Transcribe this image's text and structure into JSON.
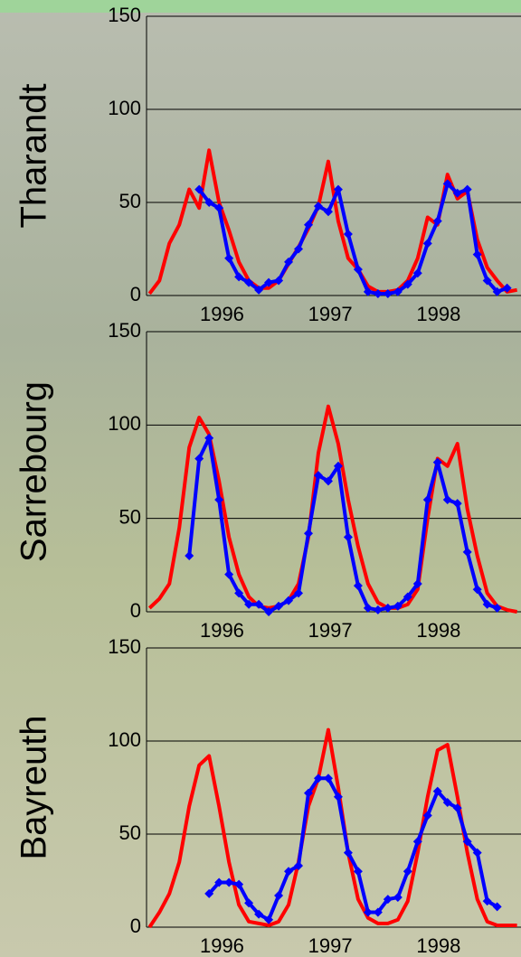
{
  "chart_data": [
    {
      "type": "line",
      "ylabel": "Tharandt",
      "x": [
        0,
        1,
        2,
        3,
        4,
        5,
        6,
        7,
        8,
        9,
        10,
        11,
        12,
        13,
        14,
        15,
        16,
        17,
        18,
        19,
        20,
        21,
        22,
        23,
        24,
        25,
        26,
        27,
        28,
        29,
        30,
        31,
        32,
        33,
        34,
        35,
        36,
        37
      ],
      "series": [
        {
          "color": "#ff0000",
          "marker": "none",
          "values": [
            1,
            8,
            28,
            38,
            57,
            47,
            78,
            50,
            35,
            18,
            8,
            4,
            4,
            8,
            17,
            26,
            36,
            48,
            72,
            40,
            20,
            14,
            5,
            2,
            2,
            3,
            8,
            20,
            42,
            38,
            65,
            52,
            56,
            30,
            15,
            8,
            2,
            3
          ]
        },
        {
          "color": "#0000ff",
          "marker": "diamond",
          "values": [
            null,
            null,
            null,
            null,
            null,
            57,
            50,
            47,
            20,
            10,
            7,
            3,
            7,
            8,
            18,
            25,
            38,
            48,
            45,
            57,
            33,
            14,
            2,
            1,
            1,
            2,
            6,
            12,
            28,
            40,
            60,
            55,
            57,
            22,
            8,
            2,
            4,
            null
          ]
        }
      ],
      "xlim": [
        -0.3,
        37.4
      ],
      "xticks": [
        {
          "value": 7.3,
          "label": "1996"
        },
        {
          "value": 18.2,
          "label": "1997"
        },
        {
          "value": 29.1,
          "label": "1998"
        }
      ],
      "ylim": [
        0,
        150
      ],
      "yticks": [
        0,
        50,
        100,
        150
      ],
      "grid": true
    },
    {
      "type": "line",
      "ylabel": "Sarrebourg",
      "x": [
        0,
        1,
        2,
        3,
        4,
        5,
        6,
        7,
        8,
        9,
        10,
        11,
        12,
        13,
        14,
        15,
        16,
        17,
        18,
        19,
        20,
        21,
        22,
        23,
        24,
        25,
        26,
        27,
        28,
        29,
        30,
        31,
        32,
        33,
        34,
        35,
        36,
        37
      ],
      "series": [
        {
          "color": "#ff0000",
          "marker": "none",
          "values": [
            2,
            7,
            15,
            45,
            88,
            104,
            95,
            70,
            40,
            20,
            8,
            3,
            2,
            3,
            6,
            15,
            40,
            85,
            110,
            90,
            60,
            35,
            15,
            5,
            2,
            2,
            4,
            12,
            50,
            82,
            78,
            90,
            55,
            30,
            10,
            3,
            1,
            0
          ]
        },
        {
          "color": "#0000ff",
          "marker": "diamond",
          "values": [
            null,
            null,
            null,
            null,
            30,
            82,
            93,
            60,
            20,
            10,
            4,
            4,
            0,
            3,
            6,
            10,
            42,
            73,
            70,
            78,
            40,
            14,
            2,
            1,
            2,
            3,
            8,
            15,
            60,
            80,
            60,
            58,
            32,
            12,
            4,
            2,
            null,
            null
          ]
        }
      ],
      "xlim": [
        -0.3,
        37.4
      ],
      "xticks": [
        {
          "value": 7.3,
          "label": "1996"
        },
        {
          "value": 18.2,
          "label": "1997"
        },
        {
          "value": 29.1,
          "label": "1998"
        }
      ],
      "ylim": [
        0,
        150
      ],
      "yticks": [
        0,
        50,
        100,
        150
      ],
      "grid": true
    },
    {
      "type": "line",
      "ylabel": "Bayreuth",
      "x": [
        0,
        1,
        2,
        3,
        4,
        5,
        6,
        7,
        8,
        9,
        10,
        11,
        12,
        13,
        14,
        15,
        16,
        17,
        18,
        19,
        20,
        21,
        22,
        23,
        24,
        25,
        26,
        27,
        28,
        29,
        30,
        31,
        32,
        33,
        34,
        35,
        36,
        37
      ],
      "series": [
        {
          "color": "#ff0000",
          "marker": "none",
          "values": [
            0,
            8,
            18,
            35,
            65,
            87,
            92,
            65,
            35,
            12,
            3,
            2,
            1,
            3,
            12,
            35,
            65,
            80,
            106,
            75,
            40,
            15,
            5,
            2,
            2,
            4,
            14,
            40,
            70,
            95,
            98,
            70,
            40,
            15,
            3,
            1,
            1,
            1
          ]
        },
        {
          "color": "#0000ff",
          "marker": "diamond",
          "values": [
            null,
            null,
            null,
            null,
            null,
            null,
            18,
            24,
            24,
            23,
            13,
            7,
            4,
            17,
            30,
            33,
            72,
            80,
            80,
            70,
            40,
            30,
            8,
            8,
            15,
            16,
            30,
            46,
            60,
            73,
            67,
            64,
            46,
            40,
            14,
            11,
            null,
            null
          ]
        }
      ],
      "xlim": [
        -0.3,
        37.4
      ],
      "xticks": [
        {
          "value": 7.3,
          "label": "1996"
        },
        {
          "value": 18.2,
          "label": "1997"
        },
        {
          "value": 29.1,
          "label": "1998"
        }
      ],
      "ylim": [
        0,
        150
      ],
      "yticks": [
        0,
        50,
        100,
        150
      ],
      "grid": true
    }
  ]
}
